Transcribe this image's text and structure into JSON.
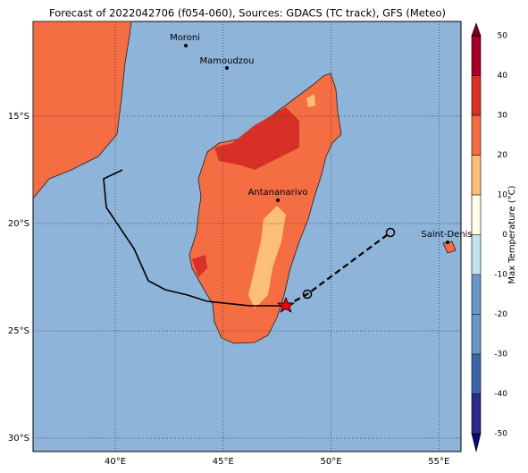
{
  "title": "Forecast of 2022042706 (f054-060), Sources: GDACS (TC track), GFS (Meteo)",
  "cities": [
    "Moroni",
    "Mamoudzou",
    "Antananarivo",
    "Saint-Denis"
  ],
  "axes": {
    "xticks": [
      {
        "value": 40,
        "label": "40°E"
      },
      {
        "value": 45,
        "label": "45°E"
      },
      {
        "value": 50,
        "label": "50°E"
      },
      {
        "value": 55,
        "label": "55°E"
      }
    ],
    "yticks": [
      {
        "value": -15,
        "label": "15°S"
      },
      {
        "value": -20,
        "label": "20°S"
      },
      {
        "value": -25,
        "label": "25°S"
      },
      {
        "value": -30,
        "label": "30°S"
      }
    ]
  },
  "colorbar": {
    "label": "Max Temperature (°C)",
    "lim": [
      -50,
      50
    ],
    "ticks": [
      -50,
      -40,
      -30,
      -20,
      -10,
      0,
      10,
      20,
      30,
      40,
      50
    ],
    "colors": [
      "#2a2a8c",
      "#3b64a8",
      "#6a98c6",
      "#6a98c6",
      "#c4e2ef",
      "#fffde8",
      "#fdbf78",
      "#f46d43",
      "#d73027",
      "#a50026"
    ],
    "under": "#0a0a6e",
    "over": "#7a0022"
  }
}
